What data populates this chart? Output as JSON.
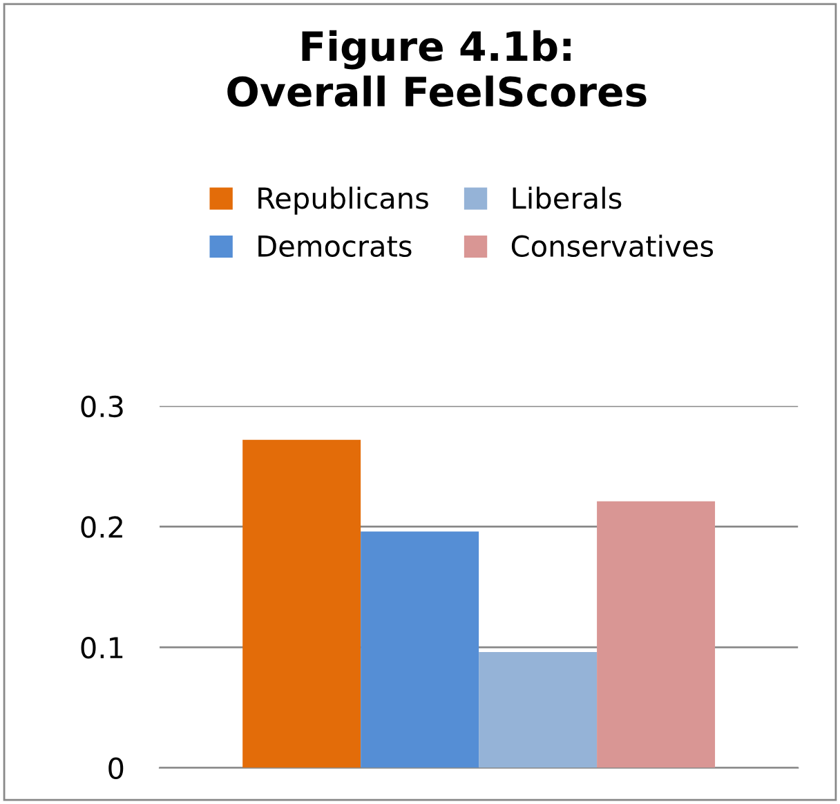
{
  "chart_data": {
    "type": "bar",
    "title": "Figure 4.1b:\nOverall FeelScores",
    "categories": [
      null
    ],
    "series": [
      {
        "name": "Republicans",
        "color": "#e36c09",
        "values": [
          0.272
        ]
      },
      {
        "name": "Democrats",
        "color": "#558ed5",
        "values": [
          0.196
        ]
      },
      {
        "name": "Liberals",
        "color": "#95b3d7",
        "values": [
          0.096
        ]
      },
      {
        "name": "Conservatives",
        "color": "#d99694",
        "values": [
          0.221
        ]
      }
    ],
    "ylim": [
      0,
      0.3
    ],
    "yticks": [
      {
        "value": 0,
        "label": "0"
      },
      0.1,
      0.2,
      0.3
    ],
    "grid": "y",
    "legend": "top"
  }
}
